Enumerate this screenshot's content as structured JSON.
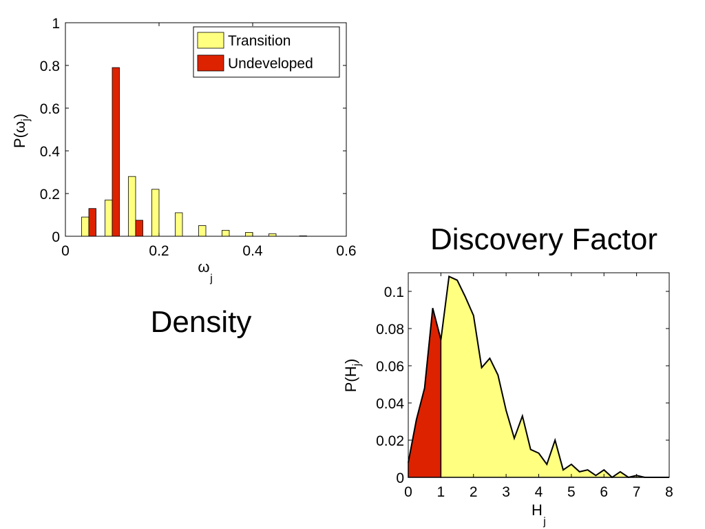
{
  "captions": {
    "density": "Density",
    "discovery": "Discovery Factor"
  },
  "chart_data": [
    {
      "type": "bar",
      "xlabel": "ω",
      "xlabel_sub": "j",
      "ylabel_prefix": "P(",
      "ylabel_var": "ω",
      "ylabel_sub": "j",
      "ylabel_suffix": ")",
      "xlim": [
        0,
        0.6
      ],
      "ylim": [
        0,
        1
      ],
      "xticks": [
        0,
        0.2,
        0.4,
        0.6
      ],
      "xtick_labels": [
        "0",
        "0.2",
        "0.4",
        "0.6"
      ],
      "yticks": [
        0,
        0.2,
        0.4,
        0.6,
        0.8,
        1
      ],
      "ytick_labels": [
        "0",
        "0.2",
        "0.4",
        "0.6",
        "0.8",
        "1"
      ],
      "x": [
        0.05,
        0.1,
        0.15,
        0.2,
        0.25,
        0.3,
        0.35,
        0.4,
        0.45,
        0.5
      ],
      "series": [
        {
          "name": "Transition",
          "color": "#ffff80",
          "values": [
            0.09,
            0.17,
            0.28,
            0.22,
            0.11,
            0.05,
            0.028,
            0.018,
            0.012,
            0.0
          ]
        },
        {
          "name": "Undeveloped",
          "color": "#dd2200",
          "values": [
            0.13,
            0.79,
            0.075,
            0.0,
            0.0,
            0.0,
            0.0,
            0.0,
            0.0,
            0.002
          ]
        }
      ],
      "legend_position": "top-right",
      "grid": false
    },
    {
      "type": "area",
      "xlabel": "H",
      "xlabel_sub": "j",
      "ylabel_prefix": "P(",
      "ylabel_var": "H",
      "ylabel_sub": "j",
      "ylabel_suffix": ")",
      "xlim": [
        0,
        8
      ],
      "ylim": [
        0,
        0.11
      ],
      "xticks": [
        0,
        1,
        2,
        3,
        4,
        5,
        6,
        7,
        8
      ],
      "xtick_labels": [
        "0",
        "1",
        "2",
        "3",
        "4",
        "5",
        "6",
        "7",
        "8"
      ],
      "yticks": [
        0,
        0.02,
        0.04,
        0.06,
        0.08,
        0.1
      ],
      "ytick_labels": [
        "0",
        "0.02",
        "0.04",
        "0.06",
        "0.08",
        "0.1"
      ],
      "x": [
        0,
        0.25,
        0.5,
        0.75,
        1.0,
        1.25,
        1.5,
        1.75,
        2.0,
        2.25,
        2.5,
        2.75,
        3.0,
        3.25,
        3.5,
        3.75,
        4.0,
        4.25,
        4.5,
        4.75,
        5.0,
        5.25,
        5.5,
        5.75,
        6.0,
        6.25,
        6.5,
        6.75,
        7.0,
        7.25,
        7.5,
        7.75,
        8.0
      ],
      "y": [
        0.008,
        0.031,
        0.048,
        0.091,
        0.074,
        0.108,
        0.106,
        0.097,
        0.087,
        0.059,
        0.064,
        0.055,
        0.036,
        0.021,
        0.033,
        0.015,
        0.013,
        0.007,
        0.02,
        0.004,
        0.007,
        0.003,
        0.004,
        0.001,
        0.004,
        0.0,
        0.003,
        0.0,
        0.001,
        0.0,
        0.0,
        0.0,
        0.0
      ],
      "regions": [
        {
          "from": 0,
          "to": 1,
          "color": "#dd2200"
        },
        {
          "from": 1,
          "to": 8,
          "color": "#ffff80"
        }
      ],
      "grid": false
    }
  ]
}
